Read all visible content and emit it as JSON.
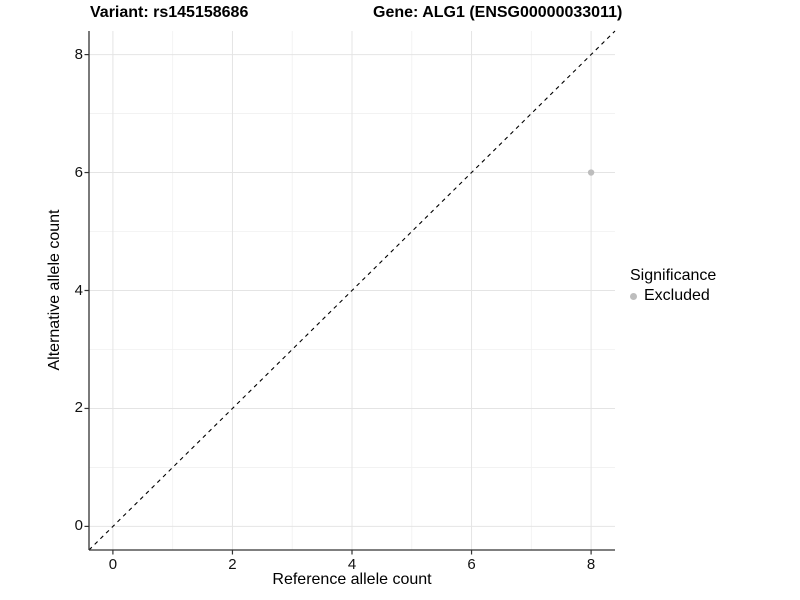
{
  "titles": {
    "variant": "Variant: rs145158686",
    "gene": "Gene: ALG1 (ENSG00000033011)"
  },
  "axes": {
    "x_label": "Reference allele count",
    "y_label": "Alternative allele count"
  },
  "legend": {
    "title": "Significance",
    "items": [
      {
        "label": "Excluded",
        "color": "#bdbdbd"
      }
    ]
  },
  "colors": {
    "background": "#ffffff",
    "grid_major": "#e4e4e4",
    "grid_minor": "#f1f1f1",
    "axis_line": "#333333",
    "reference_line": "#000000",
    "text": "#000000",
    "excluded_point": "#bdbdbd"
  },
  "chart_data": {
    "type": "scatter",
    "title": "Variant: rs145158686 | Gene: ALG1 (ENSG00000033011)",
    "xlabel": "Reference allele count",
    "ylabel": "Alternative allele count",
    "xlim": [
      -0.4,
      8.4
    ],
    "ylim": [
      -0.4,
      8.4
    ],
    "x_ticks": [
      0,
      2,
      4,
      6,
      8
    ],
    "y_ticks": [
      0,
      2,
      4,
      6,
      8
    ],
    "x_minor_ticks": [
      1,
      3,
      5,
      7
    ],
    "y_minor_ticks": [
      1,
      3,
      5,
      7
    ],
    "grid": true,
    "legend_title": "Significance",
    "legend_position": "right",
    "series": [
      {
        "name": "Excluded",
        "color": "#bdbdbd",
        "points": [
          {
            "x": 8,
            "y": 6
          }
        ]
      }
    ],
    "reference_line": {
      "type": "identity",
      "style": "dashed",
      "color": "#000000",
      "from": [
        -0.4,
        -0.4
      ],
      "to": [
        8.4,
        8.4
      ]
    }
  }
}
